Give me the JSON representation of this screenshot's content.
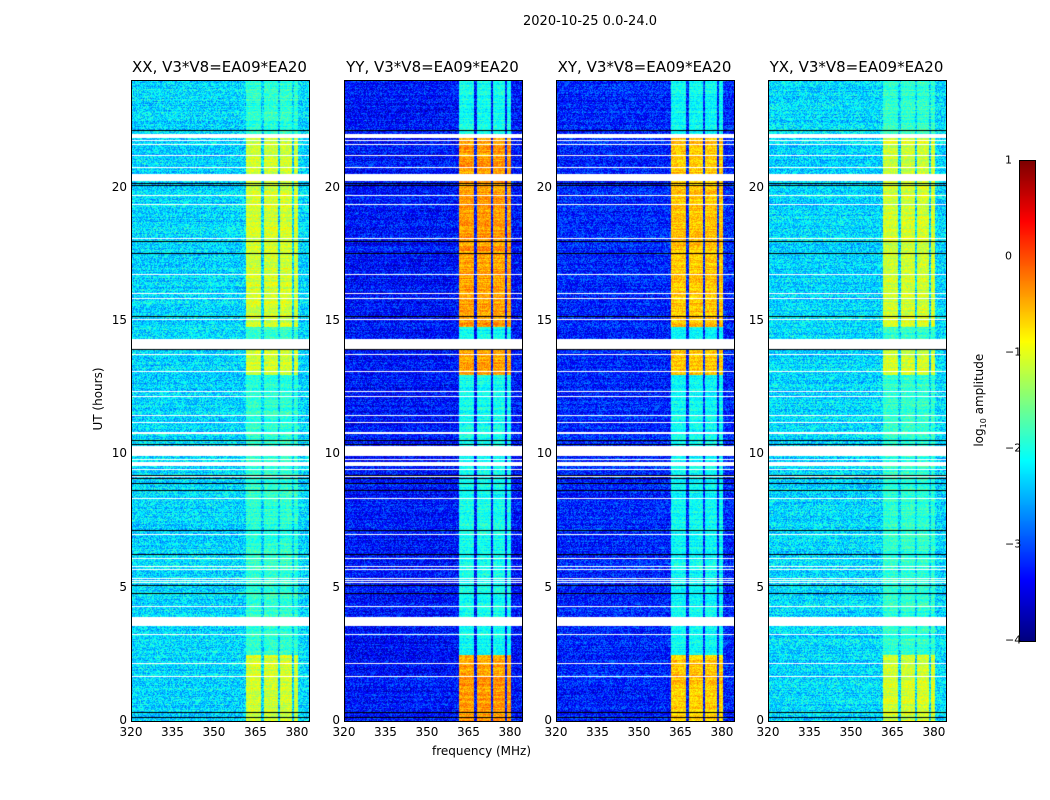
{
  "suptitle": "2020-10-25 0.0-24.0",
  "chart_data": {
    "type": "heatmap",
    "title": "2020-10-25 0.0-24.0",
    "xlabel": "frequency (MHz)",
    "ylabel": "UT (hours)",
    "xlim": [
      320,
      384
    ],
    "ylim": [
      0,
      24
    ],
    "xticks": [
      "320",
      "335",
      "350",
      "365",
      "380"
    ],
    "yticks": [
      "0",
      "5",
      "10",
      "15",
      "20"
    ],
    "panels": [
      {
        "title": "XX, V3*V8=EA09*EA20",
        "base_log_amp": -2.3,
        "band_log_amp": -1.1
      },
      {
        "title": "YY, V3*V8=EA09*EA20",
        "base_log_amp": -3.3,
        "band_log_amp": -0.4
      },
      {
        "title": "XY, V3*V8=EA09*EA20",
        "base_log_amp": -3.2,
        "band_log_amp": -0.6
      },
      {
        "title": "YX, V3*V8=EA09*EA20",
        "base_log_amp": -2.3,
        "band_log_amp": -1.1
      }
    ],
    "rfi_band_mhz": [
      361,
      380
    ],
    "flagged_hours": [
      [
        3.6,
        3.9
      ],
      [
        10,
        10.3
      ],
      [
        14,
        14.3
      ],
      [
        20.3,
        20.5
      ],
      [
        9.6,
        9.7
      ],
      [
        21.9,
        22.0
      ]
    ],
    "colorbar": {
      "label": "log₁₀ amplitude",
      "range": [
        -4,
        1
      ],
      "ticks": [
        "1",
        "0",
        "−1",
        "−2",
        "−3",
        "−4"
      ],
      "colormap": "jet"
    }
  }
}
